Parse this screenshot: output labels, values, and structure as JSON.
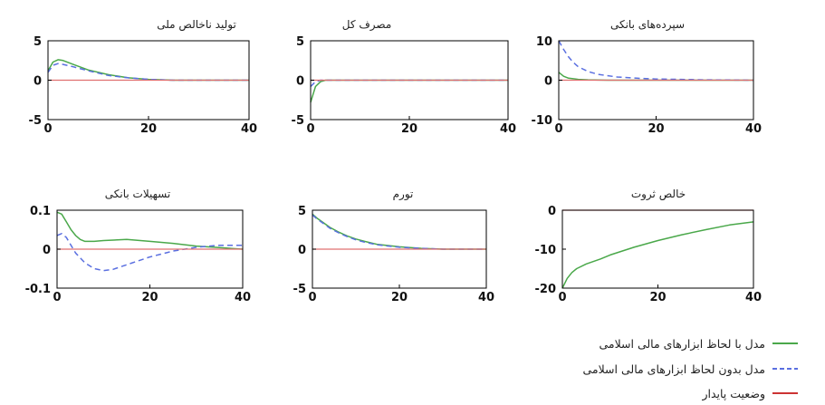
{
  "chart_data": [
    {
      "type": "line",
      "title": "تولید ناخالص ملی",
      "xlim": [
        0,
        40
      ],
      "ylim": [
        -5,
        5
      ],
      "xticks": [
        0,
        20,
        40
      ],
      "yticks": [
        -5,
        0,
        5
      ],
      "xticklabels": [
        "0",
        "20",
        "40"
      ],
      "yticklabels": [
        "-5",
        "0",
        "5"
      ],
      "series": [
        {
          "key": "with_islamic",
          "x": [
            0,
            1,
            2,
            3,
            5,
            8,
            12,
            16,
            20,
            25,
            30,
            40
          ],
          "y": [
            1.2,
            2.3,
            2.6,
            2.5,
            2.0,
            1.3,
            0.7,
            0.3,
            0.1,
            0.0,
            0.0,
            0.0
          ]
        },
        {
          "key": "without_islamic",
          "x": [
            0,
            1,
            2,
            3,
            5,
            8,
            12,
            16,
            20,
            25,
            30,
            40
          ],
          "y": [
            1.0,
            1.9,
            2.1,
            2.0,
            1.7,
            1.2,
            0.6,
            0.3,
            0.1,
            0.0,
            0.0,
            0.0
          ]
        },
        {
          "key": "steady_state",
          "x": [
            0,
            40
          ],
          "y": [
            0,
            0
          ]
        }
      ]
    },
    {
      "type": "line",
      "title": "مصرف کل",
      "xlim": [
        0,
        40
      ],
      "ylim": [
        -5,
        5
      ],
      "xticks": [
        0,
        20,
        40
      ],
      "yticks": [
        -5,
        0,
        5
      ],
      "xticklabels": [
        "0",
        "20",
        "40"
      ],
      "yticklabels": [
        "-5",
        "0",
        "5"
      ],
      "series": [
        {
          "key": "with_islamic",
          "x": [
            0,
            0.5,
            1,
            2,
            3,
            5,
            40
          ],
          "y": [
            -2.8,
            -1.8,
            -0.8,
            -0.2,
            0.0,
            0.0,
            0.0
          ]
        },
        {
          "key": "without_islamic",
          "x": [
            0,
            0.5,
            1,
            2,
            3,
            5,
            40
          ],
          "y": [
            -0.8,
            -0.5,
            -0.2,
            0.0,
            0.0,
            0.0,
            0.0
          ]
        },
        {
          "key": "steady_state",
          "x": [
            0,
            40
          ],
          "y": [
            0,
            0
          ]
        }
      ]
    },
    {
      "type": "line",
      "title": "سپرده‌های بانکی",
      "xlim": [
        0,
        40
      ],
      "ylim": [
        -10,
        10
      ],
      "xticks": [
        0,
        20,
        40
      ],
      "yticks": [
        -10,
        0,
        10
      ],
      "xticklabels": [
        "0",
        "20",
        "40"
      ],
      "yticklabels": [
        "-10",
        "0",
        "10"
      ],
      "series": [
        {
          "key": "with_islamic",
          "x": [
            0,
            1,
            2,
            4,
            6,
            10,
            40
          ],
          "y": [
            2.0,
            1.0,
            0.5,
            0.2,
            0.1,
            0.0,
            0.0
          ]
        },
        {
          "key": "without_islamic",
          "x": [
            0,
            1,
            2,
            3,
            4,
            6,
            8,
            12,
            16,
            20,
            25,
            30,
            40
          ],
          "y": [
            10.0,
            7.8,
            5.9,
            4.5,
            3.4,
            2.2,
            1.5,
            0.8,
            0.5,
            0.3,
            0.2,
            0.1,
            0.0
          ]
        },
        {
          "key": "steady_state",
          "x": [
            0,
            40
          ],
          "y": [
            0,
            0
          ]
        }
      ]
    },
    {
      "type": "line",
      "title": "تسهیلات بانکی",
      "xlim": [
        0,
        40
      ],
      "ylim": [
        -0.1,
        0.1
      ],
      "xticks": [
        0,
        20,
        40
      ],
      "yticks": [
        -0.1,
        0,
        0.1
      ],
      "xticklabels": [
        "0",
        "20",
        "40"
      ],
      "yticklabels": [
        "-0.1",
        "0",
        "0.1"
      ],
      "series": [
        {
          "key": "with_islamic",
          "x": [
            0,
            1,
            2,
            3,
            4,
            5,
            6,
            8,
            10,
            15,
            20,
            25,
            30,
            35,
            40
          ],
          "y": [
            0.095,
            0.09,
            0.07,
            0.05,
            0.035,
            0.025,
            0.02,
            0.02,
            0.022,
            0.025,
            0.02,
            0.015,
            0.008,
            0.004,
            0.0
          ]
        },
        {
          "key": "without_islamic",
          "x": [
            0,
            1,
            2,
            3,
            4,
            6,
            8,
            10,
            12,
            15,
            20,
            25,
            30,
            35,
            40
          ],
          "y": [
            0.035,
            0.04,
            0.03,
            0.01,
            -0.01,
            -0.035,
            -0.05,
            -0.055,
            -0.052,
            -0.04,
            -0.02,
            -0.005,
            0.005,
            0.01,
            0.01
          ]
        },
        {
          "key": "steady_state",
          "x": [
            0,
            40
          ],
          "y": [
            0,
            0
          ]
        }
      ]
    },
    {
      "type": "line",
      "title": "تورم",
      "xlim": [
        0,
        40
      ],
      "ylim": [
        -5,
        5
      ],
      "xticks": [
        0,
        20,
        40
      ],
      "yticks": [
        -5,
        0,
        5
      ],
      "xticklabels": [
        "0",
        "20",
        "40"
      ],
      "yticklabels": [
        "-5",
        "0",
        "5"
      ],
      "series": [
        {
          "key": "with_islamic",
          "x": [
            0,
            1,
            2,
            4,
            6,
            8,
            10,
            12,
            15,
            20,
            25,
            30,
            40
          ],
          "y": [
            4.5,
            4.0,
            3.6,
            2.8,
            2.2,
            1.7,
            1.3,
            1.0,
            0.6,
            0.3,
            0.1,
            0.0,
            0.0
          ]
        },
        {
          "key": "without_islamic",
          "x": [
            0,
            1,
            2,
            4,
            6,
            8,
            10,
            12,
            15,
            20,
            25,
            30,
            40
          ],
          "y": [
            4.4,
            3.9,
            3.5,
            2.7,
            2.1,
            1.6,
            1.2,
            0.9,
            0.55,
            0.25,
            0.1,
            0.0,
            0.0
          ]
        },
        {
          "key": "steady_state",
          "x": [
            0,
            40
          ],
          "y": [
            0,
            0
          ]
        }
      ]
    },
    {
      "type": "line",
      "title": "خالص ثروت",
      "xlim": [
        0,
        40
      ],
      "ylim": [
        -20,
        0
      ],
      "xticks": [
        0,
        20,
        40
      ],
      "yticks": [
        -20,
        -10,
        0
      ],
      "xticklabels": [
        "0",
        "20",
        "40"
      ],
      "yticklabels": [
        "-20",
        "-10",
        "0"
      ],
      "series": [
        {
          "key": "with_islamic",
          "x": [
            0,
            1,
            2,
            3,
            5,
            8,
            10,
            15,
            20,
            25,
            30,
            35,
            40
          ],
          "y": [
            -20.0,
            -17.5,
            -16.0,
            -15.0,
            -13.8,
            -12.5,
            -11.5,
            -9.5,
            -7.8,
            -6.3,
            -5.0,
            -3.8,
            -3.0
          ]
        },
        {
          "key": "steady_state",
          "x": [
            0,
            40
          ],
          "y": [
            0,
            0
          ]
        }
      ]
    }
  ],
  "legend": [
    {
      "key": "with_islamic",
      "label": "مدل با لحاظ ابزارهای مالی اسلامی",
      "color": "#4aa84a",
      "dash": "solid"
    },
    {
      "key": "without_islamic",
      "label": "مدل بدون لحاظ ابزارهای مالی اسلامی",
      "color": "#5a6fe0",
      "dash": "dashed"
    },
    {
      "key": "steady_state",
      "label": "وضعیت پایدار",
      "color": "#cc3333",
      "dash": "solid"
    }
  ],
  "colors": {
    "with_islamic": "#4aa84a",
    "without_islamic": "#5a6fe0",
    "steady_state": "#e07070"
  }
}
